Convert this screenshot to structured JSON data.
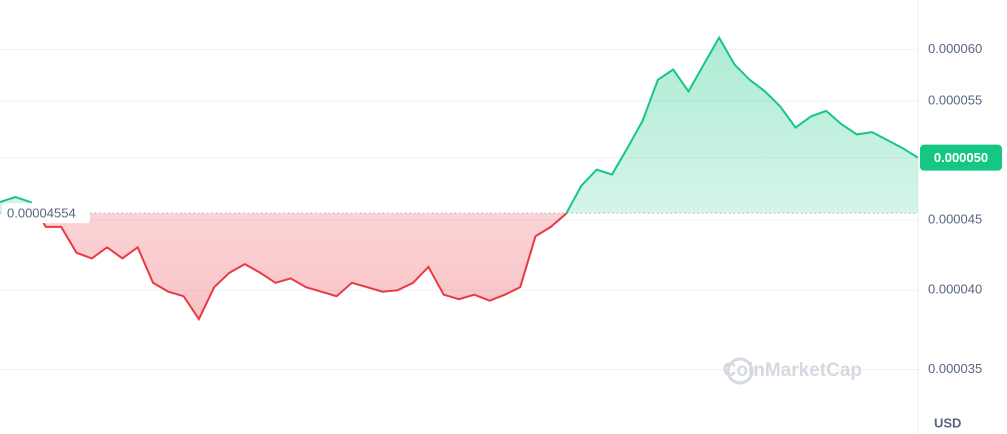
{
  "chart_data": {
    "type": "line",
    "log_scale": true,
    "grid": true,
    "up_color": "#16c784",
    "down_color": "#ea3943",
    "baseline": 4.554e-05,
    "current_price": {
      "value": 5e-05,
      "label": "0.000050"
    },
    "y_unit": "USD",
    "watermark": "CoinMarketCap",
    "ylim": [
      3.14e-05,
      6.52e-05
    ],
    "yticks": [
      {
        "value": 3.5e-05,
        "label": "0.000035"
      },
      {
        "value": 4e-05,
        "label": "0.000040"
      },
      {
        "value": 4.5e-05,
        "label": "0.000045"
      },
      {
        "value": 5e-05,
        "label": "0.000050"
      },
      {
        "value": 5.5e-05,
        "label": "0.000055"
      },
      {
        "value": 6e-05,
        "label": "0.000060"
      }
    ],
    "values": [
      4.64e-05,
      4.68e-05,
      4.64e-05,
      4.45e-05,
      4.45e-05,
      4.26e-05,
      4.22e-05,
      4.3e-05,
      4.22e-05,
      4.3e-05,
      4.05e-05,
      3.99e-05,
      3.96e-05,
      3.81e-05,
      4.02e-05,
      4.12e-05,
      4.18e-05,
      4.12e-05,
      4.05e-05,
      4.08e-05,
      4.02e-05,
      3.99e-05,
      3.96e-05,
      4.05e-05,
      4.02e-05,
      3.99e-05,
      4e-05,
      4.05e-05,
      4.16e-05,
      3.97e-05,
      3.94e-05,
      3.97e-05,
      3.93e-05,
      3.97e-05,
      4.02e-05,
      4.38e-05,
      4.45e-05,
      4.55e-05,
      4.77e-05,
      4.9e-05,
      4.86e-05,
      5.08e-05,
      5.32e-05,
      5.7e-05,
      5.8e-05,
      5.59e-05,
      5.85e-05,
      6.12e-05,
      5.85e-05,
      5.7e-05,
      5.59e-05,
      5.45e-05,
      5.26e-05,
      5.36e-05,
      5.41e-05,
      5.29e-05,
      5.2e-05,
      5.22e-05,
      5.15e-05,
      5.08e-05,
      5e-05
    ]
  }
}
